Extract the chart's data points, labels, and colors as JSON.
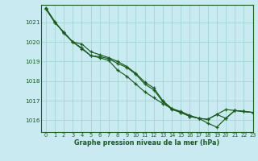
{
  "title": "Graphe pression niveau de la mer (hPa)",
  "bg_color": "#c8eaf0",
  "grid_color": "#a8d8d8",
  "line_color": "#1a5c1a",
  "xlim": [
    -0.5,
    23
  ],
  "ylim": [
    1015.4,
    1021.9
  ],
  "yticks": [
    1016,
    1017,
    1018,
    1019,
    1020,
    1021
  ],
  "xticks": [
    0,
    1,
    2,
    3,
    4,
    5,
    6,
    7,
    8,
    9,
    10,
    11,
    12,
    13,
    14,
    15,
    16,
    17,
    18,
    19,
    20,
    21,
    22,
    23
  ],
  "series": [
    [
      1021.7,
      1021.0,
      1020.5,
      1020.0,
      1019.7,
      1019.3,
      1019.25,
      1019.15,
      1018.9,
      1018.7,
      1018.35,
      1017.85,
      1017.55,
      1016.95,
      1016.55,
      1016.4,
      1016.2,
      1016.1,
      1016.05,
      1016.3,
      1016.55,
      1016.5,
      1016.45,
      1016.4
    ],
    [
      1021.7,
      1021.0,
      1020.5,
      1020.0,
      1019.9,
      1019.5,
      1019.35,
      1019.2,
      1019.0,
      1018.75,
      1018.4,
      1017.95,
      1017.65,
      1017.0,
      1016.6,
      1016.45,
      1016.25,
      1016.1,
      1015.85,
      1015.65,
      1016.1,
      1016.5,
      1016.45,
      1016.4
    ],
    [
      1021.75,
      1021.05,
      1020.45,
      1020.0,
      1019.65,
      1019.3,
      1019.2,
      1019.05,
      1018.55,
      1018.25,
      1017.85,
      1017.45,
      1017.15,
      1016.85,
      1016.6,
      1016.4,
      1016.2,
      1016.1,
      1016.05,
      1016.3,
      1016.1,
      1016.5,
      1016.45,
      1016.4
    ]
  ]
}
